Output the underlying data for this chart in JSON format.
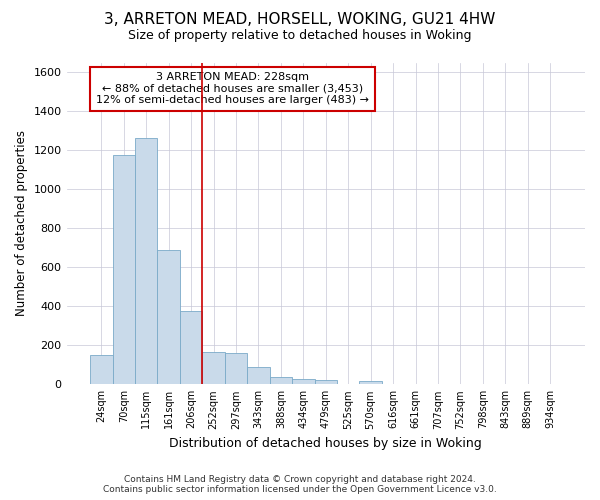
{
  "title": "3, ARRETON MEAD, HORSELL, WOKING, GU21 4HW",
  "subtitle": "Size of property relative to detached houses in Woking",
  "xlabel": "Distribution of detached houses by size in Woking",
  "ylabel": "Number of detached properties",
  "categories": [
    "24sqm",
    "70sqm",
    "115sqm",
    "161sqm",
    "206sqm",
    "252sqm",
    "297sqm",
    "343sqm",
    "388sqm",
    "434sqm",
    "479sqm",
    "525sqm",
    "570sqm",
    "616sqm",
    "661sqm",
    "707sqm",
    "752sqm",
    "798sqm",
    "843sqm",
    "889sqm",
    "934sqm"
  ],
  "values": [
    148,
    1175,
    1265,
    690,
    375,
    165,
    160,
    90,
    38,
    27,
    22,
    0,
    15,
    0,
    0,
    0,
    0,
    0,
    0,
    0,
    0
  ],
  "bar_color": "#c9daea",
  "bar_edge_color": "#7aaac8",
  "grid_color": "#c8c8d8",
  "annotation_text_line1": "3 ARRETON MEAD: 228sqm",
  "annotation_text_line2": "← 88% of detached houses are smaller (3,453)",
  "annotation_text_line3": "12% of semi-detached houses are larger (483) →",
  "annotation_box_color": "#ffffff",
  "annotation_box_edge": "#cc0000",
  "vline_color": "#cc0000",
  "vline_x": 4.5,
  "ylim": [
    0,
    1650
  ],
  "yticks": [
    0,
    200,
    400,
    600,
    800,
    1000,
    1200,
    1400,
    1600
  ],
  "footer_line1": "Contains HM Land Registry data © Crown copyright and database right 2024.",
  "footer_line2": "Contains public sector information licensed under the Open Government Licence v3.0.",
  "background_color": "#ffffff",
  "plot_bg_color": "#ffffff"
}
